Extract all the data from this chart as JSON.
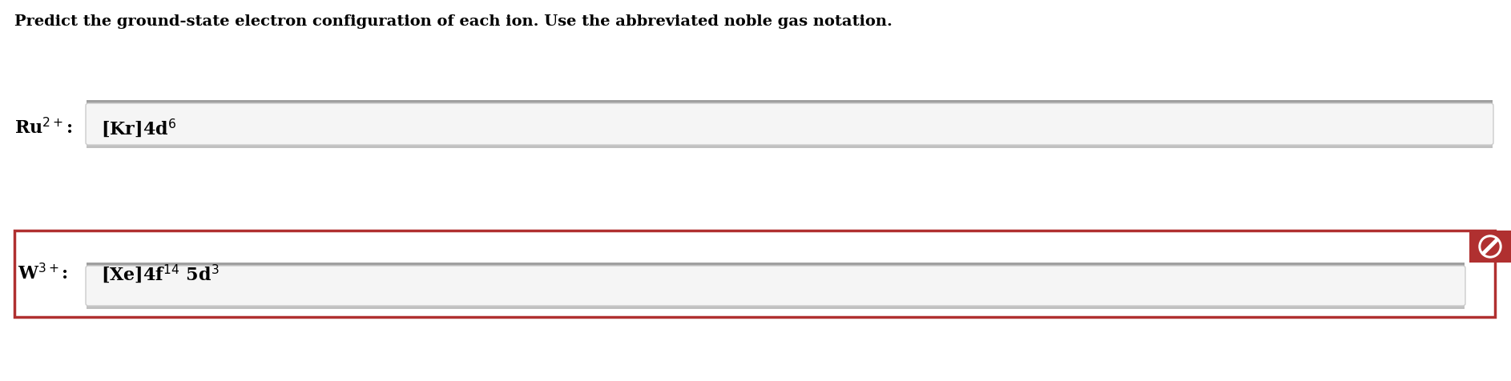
{
  "title": "Predict the ground-state electron configuration of each ion. Use the abbreviated noble gas notation.",
  "title_fontsize": 14,
  "background_color": "#ffffff",
  "row1_label": "Ru$^{2+}$:",
  "row1_answer": "[Kr]4d$^{6}$",
  "row2_label": "W$^{3+}$:",
  "row2_answer": "[Xe]4f$^{14}$ 5d$^{3}$",
  "box_face_color": "#f0f0f0",
  "box_top_border_color": "#a0a0a0",
  "box_bottom_border_color": "#c0c0c0",
  "box_edge_color": "#b0b0b0",
  "red_border_color": "#b03030",
  "icon_color": "#b03030",
  "text_color": "#000000",
  "label_fontsize": 16,
  "answer_fontsize": 16
}
